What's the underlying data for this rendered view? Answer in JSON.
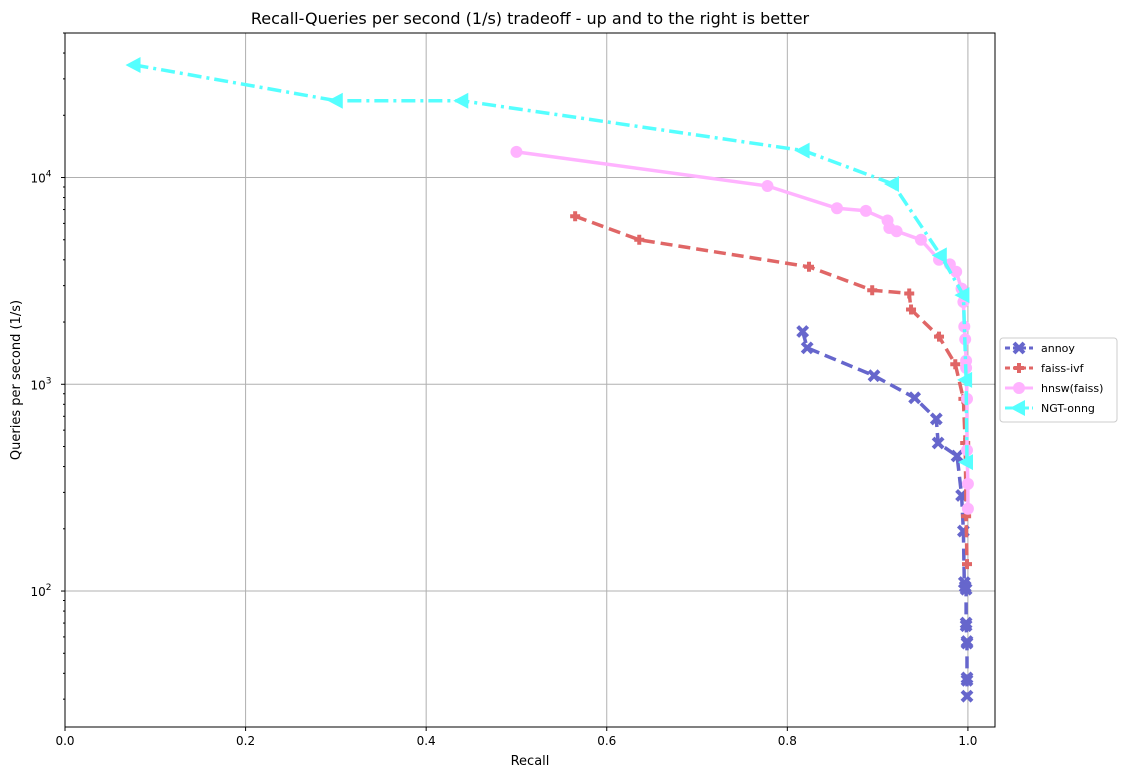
{
  "chart_data": {
    "type": "line",
    "title": "Recall-Queries per second (1/s) tradeoff - up and to the right is better",
    "xlabel": "Recall",
    "ylabel": "Queries per second (1/s)",
    "xlim": [
      0.0,
      1.03
    ],
    "ylim": [
      22,
      50000
    ],
    "yscale": "log",
    "grid": true,
    "legend_position": "right, outside plot",
    "x_ticks": [
      {
        "value": 0.0,
        "label": "0.0"
      },
      {
        "value": 0.2,
        "label": "0.2"
      },
      {
        "value": 0.4,
        "label": "0.4"
      },
      {
        "value": 0.6,
        "label": "0.6"
      },
      {
        "value": 0.8,
        "label": "0.8"
      },
      {
        "value": 1.0,
        "label": "1.0"
      }
    ],
    "y_ticks": [
      {
        "value": 100,
        "base": "10",
        "exp": "2"
      },
      {
        "value": 1000,
        "base": "10",
        "exp": "3"
      },
      {
        "value": 10000,
        "base": "10",
        "exp": "4"
      }
    ],
    "series": [
      {
        "name": "annoy",
        "color": "#6666cc",
        "linestyle": "dashed",
        "marker": "x",
        "x": [
          0.817,
          0.822,
          0.896,
          0.941,
          0.965,
          0.967,
          0.988,
          0.993,
          0.995,
          0.996,
          0.997,
          0.998,
          0.998,
          0.998,
          0.999,
          0.999,
          0.999,
          0.999,
          0.999
        ],
        "y": [
          1800,
          1500,
          1100,
          860,
          680,
          520,
          450,
          290,
          195,
          110,
          105,
          102,
          70,
          68,
          57,
          56,
          38,
          37,
          31
        ]
      },
      {
        "name": "faiss-ivf",
        "color": "#e06666",
        "linestyle": "dashed",
        "marker": "plus",
        "x": [
          0.565,
          0.636,
          0.824,
          0.894,
          0.935,
          0.937,
          0.968,
          0.986,
          0.995,
          0.997,
          0.998,
          0.999
        ],
        "y": [
          6500,
          5000,
          3700,
          2850,
          2750,
          2300,
          1700,
          1250,
          850,
          520,
          230,
          135
        ]
      },
      {
        "name": "hnsw(faiss)",
        "color": "#ffb3ff",
        "linestyle": "solid",
        "marker": "circle",
        "x": [
          0.5,
          0.778,
          0.855,
          0.887,
          0.911,
          0.913,
          0.921,
          0.948,
          0.968,
          0.98,
          0.987,
          0.993,
          0.995,
          0.996,
          0.997,
          0.998,
          0.998,
          0.999,
          0.999,
          1.0,
          1.0
        ],
        "y": [
          13300,
          9100,
          7100,
          6900,
          6200,
          5700,
          5500,
          5000,
          4000,
          3800,
          3500,
          2900,
          2500,
          1900,
          1650,
          1300,
          1200,
          850,
          480,
          330,
          250
        ]
      },
      {
        "name": "NGT-onng",
        "color": "#55ffff",
        "linestyle": "dashdot",
        "marker": "triangle-left",
        "x": [
          0.077,
          0.301,
          0.44,
          0.818,
          0.917,
          0.97,
          0.995,
          0.998,
          0.999
        ],
        "y": [
          35000,
          23500,
          23500,
          13500,
          9300,
          4200,
          2700,
          1050,
          420
        ]
      }
    ]
  }
}
